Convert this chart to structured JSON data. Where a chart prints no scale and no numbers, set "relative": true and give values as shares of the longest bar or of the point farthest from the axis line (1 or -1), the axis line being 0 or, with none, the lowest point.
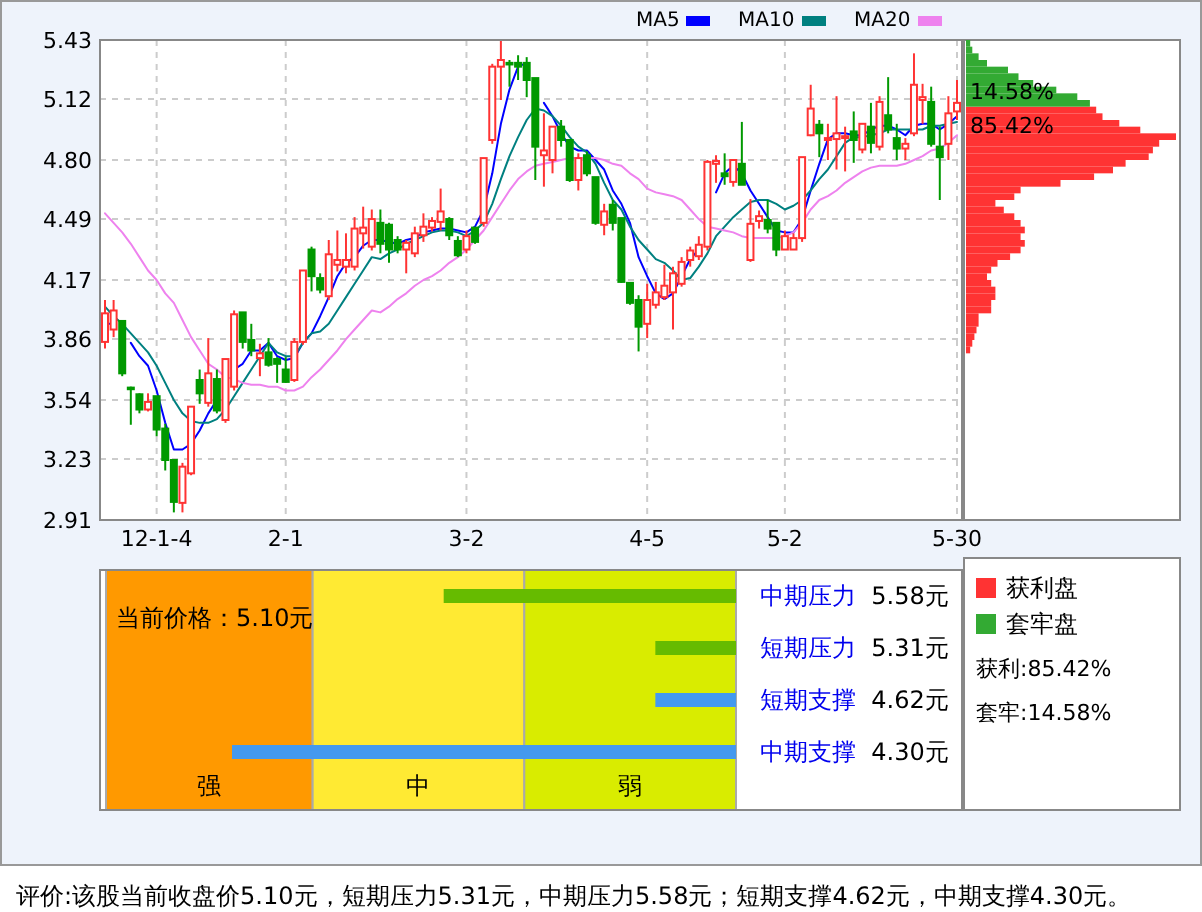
{
  "chart_data": [
    {
      "type": "candlestick",
      "categories": [
        null,
        null,
        null,
        null,
        null,
        null,
        "12-1-4",
        null,
        null,
        null,
        null,
        null,
        null,
        null,
        null,
        null,
        null,
        null,
        null,
        null,
        null,
        "2-1",
        null,
        null,
        null,
        null,
        null,
        null,
        null,
        null,
        null,
        null,
        null,
        null,
        null,
        null,
        null,
        null,
        null,
        null,
        null,
        null,
        "3-2",
        null,
        null,
        null,
        null,
        null,
        null,
        null,
        null,
        null,
        null,
        null,
        null,
        null,
        null,
        null,
        null,
        null,
        null,
        null,
        null,
        "4-5",
        null,
        null,
        null,
        null,
        null,
        null,
        null,
        null,
        null,
        null,
        null,
        null,
        null,
        null,
        null,
        "5-2",
        null,
        null,
        null,
        null,
        null,
        null,
        null,
        null,
        null,
        null,
        null,
        null,
        null,
        null,
        null,
        null,
        null,
        null,
        null,
        "5-30"
      ],
      "ohlc": [
        [
          3.845,
          4.065,
          3.81,
          3.995
        ],
        [
          3.91,
          4.065,
          3.87,
          4.01
        ],
        [
          3.955,
          3.96,
          3.665,
          3.68
        ],
        [
          3.605,
          3.61,
          3.41,
          3.6
        ],
        [
          3.57,
          3.575,
          3.47,
          3.49
        ],
        [
          3.49,
          3.575,
          3.48,
          3.53
        ],
        [
          3.56,
          3.56,
          3.35,
          3.385
        ],
        [
          3.39,
          3.415,
          3.17,
          3.225
        ],
        [
          3.225,
          3.23,
          2.95,
          3.005
        ],
        [
          3.0,
          3.21,
          2.95,
          3.19
        ],
        [
          3.155,
          3.505,
          3.145,
          3.505
        ],
        [
          3.645,
          3.7,
          3.52,
          3.575
        ],
        [
          3.525,
          3.865,
          3.505,
          3.68
        ],
        [
          3.65,
          3.7,
          3.47,
          3.485
        ],
        [
          3.435,
          3.755,
          3.42,
          3.755
        ],
        [
          3.61,
          4.01,
          3.59,
          3.99
        ],
        [
          4.0,
          4.0,
          3.81,
          3.845
        ],
        [
          3.855,
          3.94,
          3.77,
          3.8
        ],
        [
          3.76,
          3.835,
          3.665,
          3.785
        ],
        [
          3.79,
          3.865,
          3.715,
          3.725
        ],
        [
          3.755,
          3.765,
          3.63,
          3.73
        ],
        [
          3.7,
          3.765,
          3.63,
          3.635
        ],
        [
          3.645,
          3.865,
          3.635,
          3.845
        ],
        [
          3.845,
          4.22,
          3.83,
          4.22
        ],
        [
          4.33,
          4.345,
          4.11,
          4.19
        ],
        [
          4.18,
          4.205,
          4.1,
          4.12
        ],
        [
          4.085,
          4.38,
          4.065,
          4.305
        ],
        [
          4.25,
          4.43,
          4.215,
          4.275
        ],
        [
          4.24,
          4.415,
          4.205,
          4.275
        ],
        [
          4.24,
          4.5,
          4.22,
          4.44
        ],
        [
          4.415,
          4.555,
          4.335,
          4.445
        ],
        [
          4.345,
          4.54,
          4.325,
          4.49
        ],
        [
          4.47,
          4.54,
          4.31,
          4.36
        ],
        [
          4.46,
          4.47,
          4.26,
          4.33
        ],
        [
          4.38,
          4.4,
          4.31,
          4.33
        ],
        [
          4.33,
          4.38,
          4.205,
          4.365
        ],
        [
          4.31,
          4.45,
          4.29,
          4.415
        ],
        [
          4.405,
          4.52,
          4.37,
          4.45
        ],
        [
          4.445,
          4.5,
          4.425,
          4.48
        ],
        [
          4.475,
          4.65,
          4.43,
          4.53
        ],
        [
          4.49,
          4.5,
          4.38,
          4.405
        ],
        [
          4.375,
          4.4,
          4.29,
          4.3
        ],
        [
          4.33,
          4.43,
          4.31,
          4.4
        ],
        [
          4.445,
          4.445,
          4.36,
          4.37
        ],
        [
          4.47,
          4.81,
          4.45,
          4.81
        ],
        [
          4.905,
          5.305,
          4.885,
          5.29
        ],
        [
          5.29,
          5.43,
          5.115,
          5.325
        ],
        [
          5.31,
          5.325,
          5.185,
          5.305
        ],
        [
          5.31,
          5.35,
          5.22,
          5.29
        ],
        [
          5.31,
          5.34,
          5.13,
          5.22
        ],
        [
          5.23,
          5.23,
          4.695,
          4.87
        ],
        [
          4.825,
          5.045,
          4.66,
          4.85
        ],
        [
          4.8,
          4.975,
          4.73,
          4.975
        ],
        [
          4.975,
          5.01,
          4.87,
          4.905
        ],
        [
          4.905,
          4.905,
          4.685,
          4.695
        ],
        [
          4.695,
          4.835,
          4.64,
          4.81
        ],
        [
          4.825,
          4.845,
          4.715,
          4.73
        ],
        [
          4.71,
          4.71,
          4.46,
          4.47
        ],
        [
          4.46,
          4.57,
          4.405,
          4.53
        ],
        [
          4.565,
          4.59,
          4.43,
          4.47
        ],
        [
          4.495,
          4.495,
          4.155,
          4.16
        ],
        [
          4.155,
          4.155,
          4.04,
          4.05
        ],
        [
          4.065,
          4.09,
          3.795,
          3.925
        ],
        [
          3.94,
          4.15,
          3.865,
          4.065
        ],
        [
          4.04,
          4.16,
          4.02,
          4.105
        ],
        [
          4.08,
          4.25,
          4.065,
          4.14
        ],
        [
          4.105,
          4.24,
          3.91,
          4.205
        ],
        [
          4.15,
          4.29,
          4.135,
          4.265
        ],
        [
          4.275,
          4.345,
          4.24,
          4.325
        ],
        [
          4.295,
          4.4,
          4.275,
          4.355
        ],
        [
          4.345,
          4.8,
          4.325,
          4.79
        ],
        [
          4.78,
          4.825,
          4.68,
          4.795
        ],
        [
          4.73,
          4.835,
          4.67,
          4.715
        ],
        [
          4.685,
          4.8,
          4.66,
          4.8
        ],
        [
          4.78,
          5.0,
          4.67,
          4.67
        ],
        [
          4.275,
          4.595,
          4.265,
          4.465
        ],
        [
          4.48,
          4.535,
          4.44,
          4.505
        ],
        [
          4.485,
          4.59,
          4.415,
          4.44
        ],
        [
          4.47,
          4.47,
          4.295,
          4.33
        ],
        [
          4.33,
          4.43,
          4.33,
          4.4
        ],
        [
          4.33,
          4.415,
          4.33,
          4.39
        ],
        [
          4.39,
          4.815,
          4.37,
          4.815
        ],
        [
          4.93,
          5.195,
          4.925,
          5.07
        ],
        [
          4.985,
          5.01,
          4.815,
          4.94
        ],
        [
          4.905,
          4.99,
          4.8,
          4.915
        ],
        [
          4.91,
          5.135,
          4.75,
          4.94
        ],
        [
          4.915,
          4.975,
          4.74,
          4.925
        ],
        [
          4.95,
          5.055,
          4.785,
          4.905
        ],
        [
          4.855,
          4.99,
          4.835,
          4.99
        ],
        [
          4.975,
          5.1,
          4.835,
          4.89
        ],
        [
          4.87,
          5.135,
          4.85,
          5.105
        ],
        [
          5.035,
          5.235,
          4.94,
          4.96
        ],
        [
          4.915,
          4.99,
          4.8,
          4.86
        ],
        [
          4.86,
          4.915,
          4.8,
          4.885
        ],
        [
          4.94,
          5.36,
          4.925,
          5.195
        ],
        [
          5.115,
          5.2,
          4.99,
          5.13
        ],
        [
          5.105,
          5.185,
          4.87,
          4.885
        ],
        [
          4.87,
          4.975,
          4.59,
          4.815
        ],
        [
          4.885,
          5.135,
          4.8,
          5.045
        ],
        [
          5.055,
          5.22,
          5.01,
          5.1
        ]
      ],
      "series": [
        {
          "name": "MA5",
          "type": "line",
          "color": "#0000ff",
          "values": [
            3.94,
            3.94,
            null,
            3.84,
            3.77,
            3.72,
            3.59,
            3.42,
            3.28,
            3.28,
            3.31,
            3.38,
            3.47,
            3.54,
            null,
            3.7,
            3.73,
            3.8,
            3.8,
            3.84,
            3.77,
            3.75,
            3.76,
            3.84,
            3.89,
            3.98,
            4.08,
            4.19,
            4.26,
            4.29,
            4.35,
            4.38,
            4.38,
            4.37,
            4.36,
            4.38,
            4.39,
            4.42,
            4.43,
            4.44,
            4.44,
            4.43,
            4.42,
            4.45,
            4.54,
            4.73,
            4.99,
            5.17,
            5.29,
            5.31,
            null,
            5.1,
            5.03,
            4.94,
            4.87,
            4.85,
            4.85,
            4.8,
            4.75,
            4.64,
            4.57,
            4.47,
            4.29,
            4.19,
            4.1,
            4.07,
            4.1,
            4.19,
            4.28,
            4.33,
            null,
            4.63,
            4.73,
            4.77,
            4.73,
            4.64,
            4.57,
            4.5,
            4.43,
            4.42,
            4.42,
            4.49,
            4.64,
            4.78,
            4.91,
            4.94,
            4.94,
            4.93,
            4.93,
            4.96,
            4.98,
            4.98,
            4.96,
            4.93,
            4.98,
            4.99,
            4.99,
            4.96,
            4.99,
            5.03
          ]
        },
        {
          "name": "MA10",
          "type": "line",
          "color": "#008080",
          "values": [
            4.03,
            3.98,
            3.94,
            3.89,
            3.84,
            3.79,
            3.72,
            3.63,
            3.54,
            3.47,
            3.43,
            3.42,
            3.42,
            3.44,
            3.49,
            3.56,
            3.63,
            3.7,
            3.77,
            3.84,
            3.79,
            3.77,
            3.77,
            3.84,
            3.89,
            3.9,
            3.94,
            4.01,
            4.08,
            4.15,
            4.22,
            4.29,
            4.28,
            4.31,
            4.33,
            4.36,
            4.38,
            4.4,
            4.42,
            4.43,
            4.43,
            4.42,
            4.4,
            4.43,
            4.47,
            4.57,
            4.7,
            4.82,
            4.92,
            5.01,
            5.07,
            5.06,
            5.03,
            4.98,
            4.92,
            4.87,
            4.84,
            4.78,
            4.68,
            4.59,
            4.54,
            4.45,
            4.38,
            4.33,
            4.28,
            4.26,
            4.22,
            4.17,
            4.18,
            4.24,
            4.31,
            4.4,
            4.45,
            4.5,
            4.54,
            4.58,
            4.59,
            4.59,
            4.57,
            4.54,
            4.56,
            4.59,
            4.64,
            4.7,
            4.75,
            4.82,
            4.89,
            4.92,
            4.92,
            4.93,
            4.94,
            4.96,
            4.96,
            4.96,
            4.96,
            4.96,
            4.98,
            4.98,
            4.99,
            5.0
          ]
        },
        {
          "name": "MA20",
          "type": "line",
          "color": "#ee82ee",
          "values": [
            4.52,
            4.47,
            4.42,
            4.36,
            4.29,
            4.22,
            4.17,
            4.1,
            4.05,
            3.96,
            3.87,
            3.8,
            3.73,
            3.7,
            3.66,
            3.65,
            3.63,
            3.62,
            3.62,
            3.61,
            3.61,
            3.59,
            3.59,
            3.61,
            3.66,
            3.7,
            3.75,
            3.8,
            3.86,
            3.91,
            3.96,
            4.01,
            4.0,
            4.03,
            4.07,
            4.1,
            4.14,
            4.17,
            4.19,
            4.22,
            4.26,
            4.29,
            4.33,
            4.38,
            4.43,
            4.5,
            4.57,
            4.64,
            4.7,
            4.74,
            4.77,
            4.78,
            4.79,
            4.8,
            4.81,
            4.81,
            4.81,
            4.81,
            4.8,
            4.78,
            4.77,
            4.73,
            4.7,
            4.65,
            4.63,
            4.62,
            4.61,
            4.59,
            4.54,
            4.49,
            4.45,
            4.44,
            4.43,
            4.42,
            4.4,
            4.39,
            4.39,
            4.39,
            4.39,
            4.4,
            4.42,
            4.47,
            4.54,
            4.59,
            4.61,
            4.64,
            4.68,
            4.71,
            4.74,
            4.76,
            4.77,
            4.77,
            4.77,
            4.78,
            4.8,
            4.82,
            4.85,
            4.86,
            4.89,
            4.93
          ]
        }
      ],
      "ylim": [
        2.91,
        5.43
      ],
      "yticks": [
        5.43,
        5.12,
        {
          "value": 4.8,
          "label": "4.80"
        },
        4.49,
        4.17,
        3.86,
        3.54,
        3.23,
        2.91
      ],
      "grid": true,
      "legend": "top right"
    },
    {
      "type": "bar",
      "orientation": "horizontal",
      "relative": true,
      "stacked": true,
      "legend": "bottom",
      "categories": [
        null,
        null,
        null,
        null,
        null,
        null,
        null,
        null,
        null,
        null,
        null,
        null,
        null,
        null,
        null,
        null,
        null,
        null,
        null,
        null,
        null,
        null,
        null,
        null,
        null,
        null,
        null,
        null,
        null,
        null,
        null,
        null,
        null,
        null,
        null,
        null,
        null,
        null,
        null,
        null,
        null,
        null,
        null,
        null,
        null,
        null,
        null
      ],
      "series": [
        {
          "name": "获利盘",
          "color": "#ff3333",
          "values": [
            0,
            0,
            0,
            0,
            0,
            0,
            0,
            0,
            0,
            0,
            0.62,
            0.65,
            0.73,
            0.83,
            1,
            0.92,
            0.89,
            0.87,
            0.76,
            0.7,
            0.61,
            0.45,
            0.26,
            0.23,
            0.14,
            0.18,
            0.23,
            0.26,
            0.28,
            0.26,
            0.28,
            0.26,
            0.21,
            0.15,
            0.12,
            0.1,
            0.12,
            0.14,
            0.14,
            0.12,
            0.12,
            0.06,
            0.06,
            0.05,
            0.04,
            0.03,
            0.02
          ]
        },
        {
          "name": "套牢盘",
          "color": "#33aa33",
          "values": [
            0.02,
            0.03,
            0.06,
            0.1,
            0.2,
            0.25,
            0.32,
            0.43,
            0.53,
            0.59,
            0,
            0,
            0,
            0,
            0,
            0,
            0,
            0,
            0,
            0,
            0,
            0,
            0,
            0,
            0,
            0,
            0,
            0,
            0,
            0,
            0,
            0,
            0,
            0,
            0,
            0,
            0,
            0,
            0,
            0,
            0,
            0,
            0,
            0,
            0,
            0,
            0
          ]
        }
      ],
      "annotations": [
        "14.58%",
        "85.42%",
        "获利:85.42%",
        "套牢:14.58%"
      ]
    },
    {
      "type": "bar",
      "orientation": "horizontal",
      "relative": true,
      "categories": [
        "中期压力 5.58元",
        "短期压力 5.31元",
        "短期支撑 4.62元",
        "中期支撑 4.30元"
      ],
      "values": [
        0.58,
        0.16,
        0.16,
        1
      ],
      "colors": [
        "#66bb00",
        "#66bb00",
        "#4499ee",
        "#4499ee"
      ],
      "bands": [
        {
          "axis": "x",
          "from": 1.25,
          "to": 0.84,
          "label": "强",
          "color": "#ff9900"
        },
        {
          "axis": "x",
          "from": 0.84,
          "to": 0.42,
          "label": "中",
          "color": "#ffea33"
        },
        {
          "axis": "x",
          "from": 0.42,
          "to": 0,
          "label": "弱",
          "color": "#d9ec00"
        }
      ],
      "annotations": [
        "当前价格：5.10元",
        "评价:该股当前收盘价5.10元，短期压力5.31元，中期压力5.58元；短期支撑4.62元，中期支撑4.30元。"
      ]
    }
  ]
}
